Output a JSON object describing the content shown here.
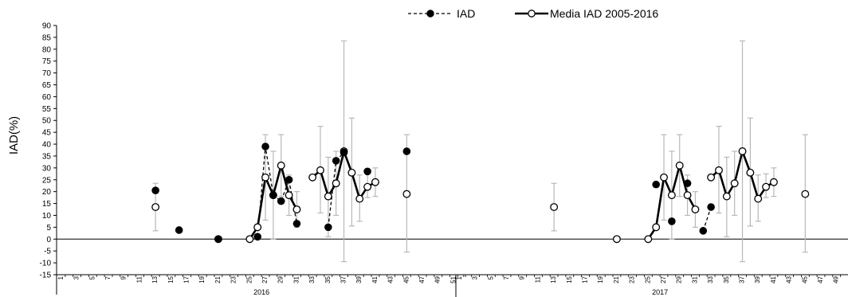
{
  "chart_data": {
    "type": "line",
    "ylabel": "IAD(%)",
    "ylim": [
      -15,
      90
    ],
    "yticks": [
      90,
      85,
      80,
      75,
      70,
      65,
      60,
      55,
      50,
      45,
      40,
      35,
      30,
      25,
      20,
      15,
      10,
      5,
      0,
      -5,
      -10,
      -15
    ],
    "week_labels": [
      "1",
      "3",
      "5",
      "7",
      "9",
      "11",
      "13",
      "15",
      "17",
      "19",
      "21",
      "23",
      "25",
      "27",
      "29",
      "31",
      "33",
      "35",
      "37",
      "39",
      "41",
      "43",
      "45",
      "47",
      "49",
      "51"
    ],
    "years": [
      "2016",
      "2017"
    ],
    "legend": {
      "iad": "IAD",
      "media": "Media IAD  2005-2016"
    },
    "series": [
      {
        "name": "IAD",
        "style": "dashed-filled",
        "color": "#000000",
        "points": [
          {
            "year": "2016",
            "week": 13,
            "y": 20.5
          },
          {
            "year": "2016",
            "week": 16,
            "y": 3.8
          },
          {
            "year": "2016",
            "week": 21,
            "y": 0
          },
          {
            "year": "2016",
            "week": 26,
            "y": 1
          },
          {
            "year": "2016",
            "week": 27,
            "y": 39
          },
          {
            "year": "2016",
            "week": 28,
            "y": 18.5
          },
          {
            "year": "2016",
            "week": 29,
            "y": 16
          },
          {
            "year": "2016",
            "week": 30,
            "y": 25
          },
          {
            "year": "2016",
            "week": 31,
            "y": 6.5
          },
          {
            "year": "2016",
            "week": 35,
            "y": 5
          },
          {
            "year": "2016",
            "week": 36,
            "y": 33
          },
          {
            "year": "2016",
            "week": 37,
            "y": 36.5
          },
          {
            "year": "2016",
            "week": 40,
            "y": 28.5
          },
          {
            "year": "2016",
            "week": 45,
            "y": 37
          },
          {
            "year": "2017",
            "week": 26,
            "y": 23
          },
          {
            "year": "2017",
            "week": 28,
            "y": 7.5
          },
          {
            "year": "2017",
            "week": 30,
            "y": 23.5
          },
          {
            "year": "2017",
            "week": 32,
            "y": 3.5
          },
          {
            "year": "2017",
            "week": 33,
            "y": 13.5
          }
        ]
      },
      {
        "name": "Media IAD  2005-2016",
        "style": "solid-open",
        "color": "#000000",
        "error_bar_color": "#b8b8b8",
        "points": [
          {
            "week": 13,
            "y": 13.5,
            "err_low": 3.5,
            "err_high": 23.5
          },
          {
            "week": 21,
            "y": 0
          },
          {
            "week": 25,
            "y": 0
          },
          {
            "week": 26,
            "y": 5
          },
          {
            "week": 27,
            "y": 26,
            "err_low": 8,
            "err_high": 44
          },
          {
            "week": 28,
            "y": 18.5,
            "err_low": 0,
            "err_high": 37
          },
          {
            "week": 29,
            "y": 31,
            "err_low": 18,
            "err_high": 44
          },
          {
            "week": 30,
            "y": 18.5,
            "err_low": 10,
            "err_high": 27
          },
          {
            "week": 31,
            "y": 12.5,
            "err_low": 5,
            "err_high": 20
          },
          {
            "week": 33,
            "y": 26
          },
          {
            "week": 34,
            "y": 29,
            "err_low": 11,
            "err_high": 47.5
          },
          {
            "week": 35,
            "y": 18,
            "err_low": 1,
            "err_high": 34.5
          },
          {
            "week": 36,
            "y": 23.5,
            "err_low": 10,
            "err_high": 37
          },
          {
            "week": 37,
            "y": 37,
            "err_low": -9.5,
            "err_high": 83.5
          },
          {
            "week": 38,
            "y": 28,
            "err_low": 5.5,
            "err_high": 51
          },
          {
            "week": 39,
            "y": 17,
            "err_low": 7.5,
            "err_high": 27
          },
          {
            "week": 40,
            "y": 22,
            "err_low": 17.5,
            "err_high": 27.5
          },
          {
            "week": 41,
            "y": 24,
            "err_low": 18,
            "err_high": 30
          },
          {
            "week": 45,
            "y": 19,
            "err_low": -5.5,
            "err_high": 44
          }
        ]
      }
    ]
  }
}
